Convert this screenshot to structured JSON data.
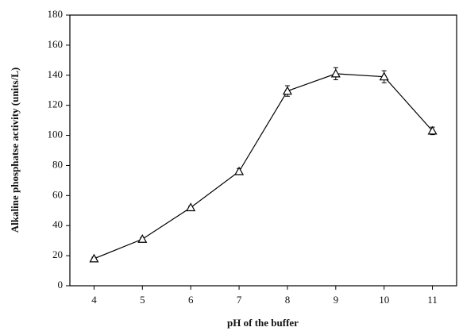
{
  "chart_data": {
    "type": "line",
    "x_label": "pH of the buffer",
    "y_label": "Alkaline phosphatse activity (units/L)",
    "x": [
      4,
      5,
      6,
      7,
      8,
      9,
      10,
      11
    ],
    "series": [
      {
        "color": "#000000",
        "values": [
          18,
          31,
          52,
          76,
          129.5,
          141,
          139,
          103
        ],
        "errors": [
          1,
          1,
          1,
          2,
          3.5,
          4,
          4,
          2.5
        ]
      }
    ],
    "xlim": [
      3.5,
      11.5
    ],
    "xticks": [
      4,
      5,
      6,
      7,
      8,
      9,
      10,
      11
    ],
    "ylim": [
      0,
      180
    ],
    "yticks": [
      0,
      20,
      40,
      60,
      80,
      100,
      120,
      140,
      160,
      180
    ],
    "grid": false
  }
}
